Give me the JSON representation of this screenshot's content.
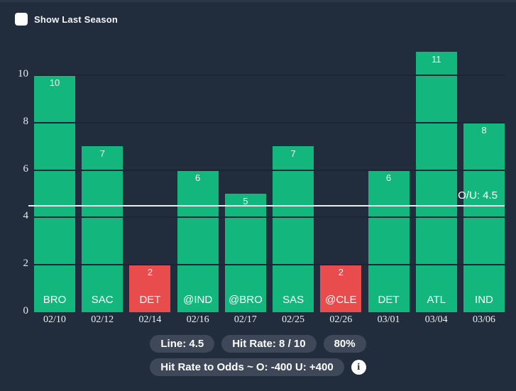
{
  "colors": {
    "background": "#212c3c",
    "bar_hit": "#13b77e",
    "bar_miss": "#e84c4c",
    "ou_line": "#e9edf2",
    "badge_bg": "#3e4859"
  },
  "controls": {
    "show_last_season_label": "Show Last Season",
    "show_last_season_checked": false
  },
  "chart_data": {
    "type": "bar",
    "categories": [
      "02/10",
      "02/12",
      "02/14",
      "02/16",
      "02/17",
      "02/25",
      "02/26",
      "03/01",
      "03/04",
      "03/06"
    ],
    "opponents": [
      "BRO",
      "SAC",
      "DET",
      "@IND",
      "@BRO",
      "SAS",
      "@CLE",
      "DET",
      "ATL",
      "IND"
    ],
    "values": [
      10,
      7,
      2,
      6,
      5,
      7,
      2,
      6,
      11,
      8
    ],
    "results": [
      "hit",
      "hit",
      "miss",
      "hit",
      "hit",
      "hit",
      "miss",
      "hit",
      "hit",
      "hit"
    ],
    "line": 4.5,
    "line_label": "O/U: 4.5",
    "yticks": [
      0,
      2,
      4,
      6,
      8,
      10
    ],
    "ylim": [
      0,
      11.1
    ],
    "grid": true,
    "legend_position": "none",
    "title": "",
    "xlabel": "",
    "ylabel": ""
  },
  "footer": {
    "line_badge": "Line: 4.5",
    "hit_rate_badge": "Hit Rate: 8 / 10",
    "hit_pct_badge": "80%",
    "odds_badge": "Hit Rate to Odds ~ O: -400 U: +400",
    "info_icon_glyph": "i"
  }
}
